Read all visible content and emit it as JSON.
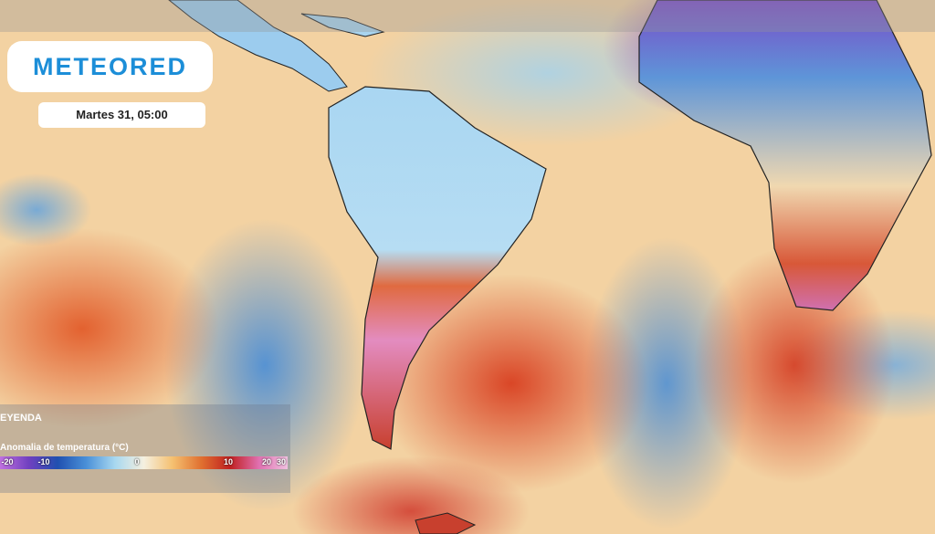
{
  "header": {
    "logo": "METEORED",
    "date": "Martes 31, 05:00"
  },
  "legend": {
    "title": "EYENDA",
    "label": "Anomalia de temperatura (°C)",
    "ticks": [
      -20,
      -10,
      0,
      10,
      20,
      30
    ],
    "colors": [
      "#c070e0",
      "#7040c0",
      "#2050b0",
      "#4a90d8",
      "#a8d8f0",
      "#f5f0e0",
      "#f5c070",
      "#e07030",
      "#c02020",
      "#e070b0",
      "#f0c0e0"
    ]
  }
}
